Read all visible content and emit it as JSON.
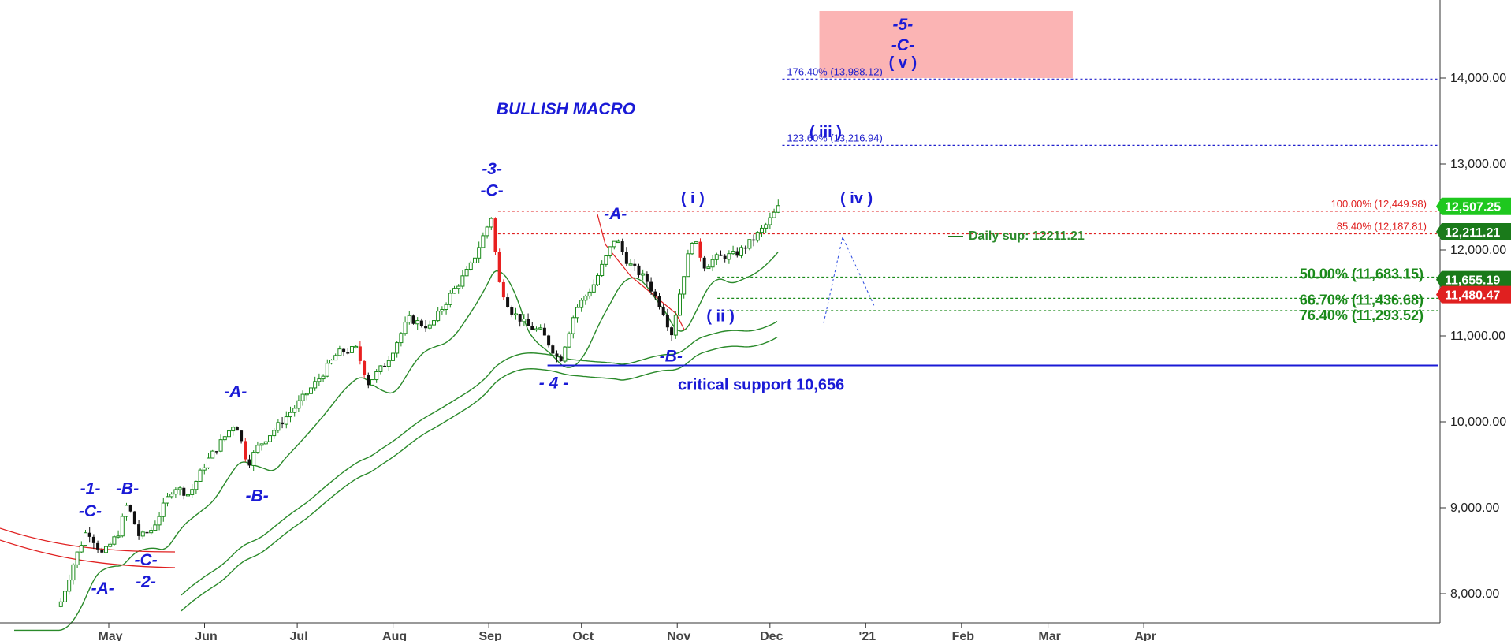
{
  "chart_data": {
    "type": "candlestick",
    "title": "BULLISH MACRO",
    "y_ticks": [
      "8,000.00",
      "9,000.00",
      "10,000.00",
      "11,000.00",
      "12,000.00",
      "13,000.00",
      "14,000.00"
    ],
    "ylim": [
      7700,
      14800
    ],
    "x_labels": [
      "May",
      "Jun",
      "Jul",
      "Aug",
      "Sep",
      "Oct",
      "Nov",
      "Dec",
      "'21",
      "Feb",
      "Mar",
      "Apr"
    ],
    "grid": false,
    "series": [
      {
        "kind": "price",
        "points": [
          {
            "date": "2020-04-15",
            "value": 7850
          },
          {
            "date": "2020-04-20",
            "value": 8400
          },
          {
            "date": "2020-04-24",
            "value": 8750
          },
          {
            "date": "2020-04-29",
            "value": 8450
          },
          {
            "date": "2020-05-04",
            "value": 8700
          },
          {
            "date": "2020-05-07",
            "value": 9050
          },
          {
            "date": "2020-05-11",
            "value": 8650
          },
          {
            "date": "2020-05-15",
            "value": 8750
          },
          {
            "date": "2020-05-22",
            "value": 9250
          },
          {
            "date": "2020-05-27",
            "value": 9150
          },
          {
            "date": "2020-06-01",
            "value": 9500
          },
          {
            "date": "2020-06-05",
            "value": 9700
          },
          {
            "date": "2020-06-11",
            "value": 10000
          },
          {
            "date": "2020-06-15",
            "value": 9500
          },
          {
            "date": "2020-06-18",
            "value": 9700
          },
          {
            "date": "2020-06-26",
            "value": 10000
          },
          {
            "date": "2020-07-01",
            "value": 10200
          },
          {
            "date": "2020-07-08",
            "value": 10500
          },
          {
            "date": "2020-07-14",
            "value": 10800
          },
          {
            "date": "2020-07-20",
            "value": 10850
          },
          {
            "date": "2020-07-24",
            "value": 10450
          },
          {
            "date": "2020-07-30",
            "value": 10700
          },
          {
            "date": "2020-08-06",
            "value": 11200
          },
          {
            "date": "2020-08-13",
            "value": 11100
          },
          {
            "date": "2020-08-20",
            "value": 11500
          },
          {
            "date": "2020-08-26",
            "value": 11800
          },
          {
            "date": "2020-09-02",
            "value": 12400
          },
          {
            "date": "2020-09-04",
            "value": 11650
          },
          {
            "date": "2020-09-08",
            "value": 11300
          },
          {
            "date": "2020-09-14",
            "value": 11100
          },
          {
            "date": "2020-09-18",
            "value": 11050
          },
          {
            "date": "2020-09-24",
            "value": 10700
          },
          {
            "date": "2020-09-29",
            "value": 11300
          },
          {
            "date": "2020-10-05",
            "value": 11600
          },
          {
            "date": "2020-10-12",
            "value": 12150
          },
          {
            "date": "2020-10-16",
            "value": 11850
          },
          {
            "date": "2020-10-22",
            "value": 11650
          },
          {
            "date": "2020-10-28",
            "value": 11250
          },
          {
            "date": "2020-10-30",
            "value": 11000
          },
          {
            "date": "2020-11-03",
            "value": 11700
          },
          {
            "date": "2020-11-06",
            "value": 12150
          },
          {
            "date": "2020-11-10",
            "value": 11800
          },
          {
            "date": "2020-11-13",
            "value": 11900
          },
          {
            "date": "2020-11-20",
            "value": 11950
          },
          {
            "date": "2020-11-25",
            "value": 12100
          },
          {
            "date": "2020-11-30",
            "value": 12300
          },
          {
            "date": "2020-12-04",
            "value": 12507
          }
        ]
      }
    ],
    "wave_labels": [
      {
        "text": "-1-",
        "date": "2020-04-25",
        "value": 9160
      },
      {
        "text": "-C-",
        "date": "2020-04-25",
        "value": 8900
      },
      {
        "text": "-A-",
        "date": "2020-04-29",
        "value": 8000
      },
      {
        "text": "-B-",
        "date": "2020-05-07",
        "value": 9160
      },
      {
        "text": "-C-",
        "date": "2020-05-13",
        "value": 8330
      },
      {
        "text": "-2-",
        "date": "2020-05-13",
        "value": 8080
      },
      {
        "text": "-A-",
        "date": "2020-06-11",
        "value": 10290
      },
      {
        "text": "-B-",
        "date": "2020-06-18",
        "value": 9080
      },
      {
        "text": "-3-",
        "date": "2020-09-02",
        "value": 12880
      },
      {
        "text": "-C-",
        "date": "2020-09-02",
        "value": 12630
      },
      {
        "text": "- 4 -",
        "date": "2020-09-22",
        "value": 10390
      },
      {
        "text": "-A-",
        "date": "2020-10-12",
        "value": 12360
      },
      {
        "text": "-B-",
        "date": "2020-10-30",
        "value": 10700
      },
      {
        "text": "( i )",
        "date": "2020-11-06",
        "value": 12540
      },
      {
        "text": "( ii )",
        "date": "2020-11-15",
        "value": 11170
      },
      {
        "text": "( iii )",
        "date": "2020-12-19",
        "value": 13310
      },
      {
        "text": "( iv )",
        "date": "2020-12-29",
        "value": 12540
      },
      {
        "text": "-5-",
        "date": "2021-01-13",
        "value": 14560
      },
      {
        "text": "-C-",
        "date": "2021-01-13",
        "value": 14320
      },
      {
        "text": "( v )",
        "date": "2021-01-13",
        "value": 14120
      }
    ],
    "levels": [
      {
        "label": "176.40% (13,988.12)",
        "value": 13988.12,
        "color": "#2020cc"
      },
      {
        "label": "123.60% (13,216.94)",
        "value": 13216.94,
        "color": "#2020cc"
      },
      {
        "label": "100.00% (12,449.98)",
        "value": 12449.98,
        "color": "#e02020"
      },
      {
        "label": "85.40% (12,187.81)",
        "value": 12187.81,
        "color": "#e02020"
      },
      {
        "label": "50.00% (11,683.15)",
        "value": 11683.15,
        "color": "#1a8a1a"
      },
      {
        "label": "66.70% (11,436.68)",
        "value": 11436.68,
        "color": "#1a8a1a"
      },
      {
        "label": "76.40% (11,293.52)",
        "value": 11293.52,
        "color": "#1a8a1a"
      }
    ],
    "critical_support": {
      "label": "critical support 10,656",
      "value": 10656
    },
    "daily_support": {
      "label": "Daily sup: 12211.21",
      "value": 12211.21
    },
    "price_tags": [
      {
        "text": "12,507.25",
        "value": 12507.25,
        "color": "#1ec81e"
      },
      {
        "text": "12,211.21",
        "value": 12211.21,
        "color": "#1a7a1a"
      },
      {
        "text": "11,655.19",
        "value": 11655.19,
        "color": "#1a7a1a"
      },
      {
        "text": "11,480.47",
        "value": 11480.47,
        "color": "#e02020"
      }
    ],
    "target_zone": {
      "value_from": 14000,
      "value_to": 14780,
      "color": "#fbb4b4"
    }
  }
}
